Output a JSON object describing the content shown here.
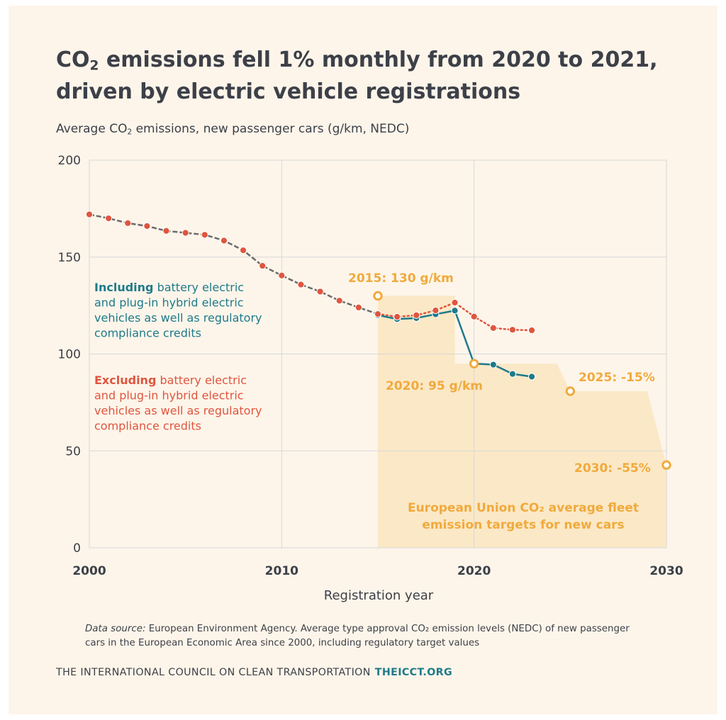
{
  "header": {
    "title_pre": "CO",
    "title_sub": "2",
    "title_post": " emissions fell 1% monthly from 2020 to 2021, driven by electric vehicle registrations",
    "subtitle_pre": "Average CO",
    "subtitle_sub": "2",
    "subtitle_post": " emissions, new passenger cars (g/km, NEDC)"
  },
  "colors": {
    "including": "#1e7a8a",
    "excluding": "#e0553e",
    "target": "#f0aa3c",
    "target_fill": "#fbe8c6",
    "grid": "#d8d8d8",
    "text": "#3d4048"
  },
  "chart_data": {
    "type": "line",
    "xlabel": "Registration year",
    "xlim": [
      2000,
      2030
    ],
    "ylim": [
      0,
      200
    ],
    "x_ticks": [
      "2000",
      "2010",
      "2020",
      "2030"
    ],
    "y_ticks": [
      "0",
      "50",
      "100",
      "150",
      "200"
    ],
    "grid": true,
    "series": [
      {
        "key": "excluding",
        "x": [
          2000,
          2001,
          2002,
          2003,
          2004,
          2005,
          2006,
          2007,
          2008,
          2009,
          2010,
          2011,
          2012,
          2013,
          2014,
          2015,
          2016,
          2017,
          2018,
          2019,
          2020,
          2021,
          2022,
          2023
        ],
        "values": [
          172,
          170,
          167.5,
          166,
          163.5,
          162.5,
          161.5,
          158.5,
          153.5,
          145.5,
          140.5,
          135.8,
          132.2,
          127.5,
          124,
          120.6,
          119.2,
          120,
          122.5,
          126.5,
          119.3,
          113.4,
          112.5,
          112.2
        ]
      },
      {
        "key": "including",
        "x": [
          2015,
          2016,
          2017,
          2018,
          2019,
          2020,
          2021,
          2022,
          2023
        ],
        "values": [
          120,
          118,
          118.5,
          120.5,
          122.4,
          95,
          94.5,
          89.7,
          88.3
        ]
      }
    ],
    "legend": [
      {
        "key": "including",
        "bold": "Including",
        "lines": [
          "Including battery electric",
          "and plug-in hybrid electric",
          "vehicles as well as regulatory",
          "compliance credits"
        ]
      },
      {
        "key": "excluding",
        "bold": "Excluding",
        "lines": [
          "Excluding battery electric",
          "and plug-in hybrid electric",
          "vehicles as well as regulatory",
          "compliance credits"
        ]
      }
    ],
    "targets": {
      "area": [
        [
          2015,
          130
        ],
        [
          2019,
          130
        ],
        [
          2019,
          95
        ],
        [
          2024.3,
          95
        ],
        [
          2025,
          80.8
        ],
        [
          2029,
          80.8
        ],
        [
          2030,
          42.7
        ]
      ],
      "points": [
        {
          "x": 2015,
          "y": 130,
          "label": "2015: 130 g/km"
        },
        {
          "x": 2020,
          "y": 95,
          "label": "2020: 95 g/km"
        },
        {
          "x": 2025,
          "y": 80.8,
          "label": "2025: -15%"
        },
        {
          "x": 2030,
          "y": 42.7,
          "label": "2030: -55%"
        }
      ],
      "caption_line1": "European Union CO₂ average fleet",
      "caption_line2": "emission targets for new cars"
    }
  },
  "source": {
    "lead": "Data source:",
    "text": " European Environment Agency. Average type approval CO₂ emission levels (NEDC) of new passenger cars in the European Economic Area since 2000, including regulatory target values"
  },
  "footer": {
    "org": "THE INTERNATIONAL COUNCIL ON CLEAN TRANSPORTATION",
    "site": "THEICCT.ORG"
  }
}
